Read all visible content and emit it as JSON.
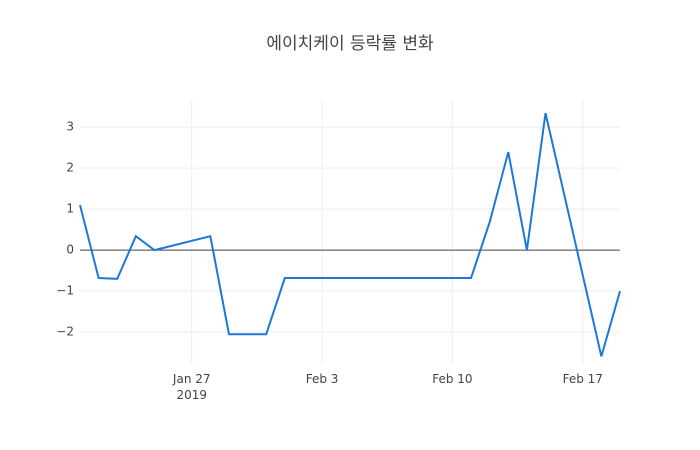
{
  "chart_data": {
    "type": "line",
    "title": "에이치케이 등락률 변화",
    "x": [
      "2019-01-21",
      "2019-01-22",
      "2019-01-23",
      "2019-01-24",
      "2019-01-25",
      "2019-01-28",
      "2019-01-29",
      "2019-01-30",
      "2019-01-31",
      "2019-02-01",
      "2019-02-07",
      "2019-02-08",
      "2019-02-11",
      "2019-02-12",
      "2019-02-13",
      "2019-02-14",
      "2019-02-15",
      "2019-02-18",
      "2019-02-19"
    ],
    "series": [
      {
        "name": "등락률",
        "color": "#1f77d8",
        "values": [
          1.1,
          -0.68,
          -0.7,
          0.34,
          0,
          0.34,
          -2.05,
          -2.05,
          -2.05,
          -0.68,
          -0.68,
          -0.68,
          -0.68,
          0.68,
          2.39,
          0,
          3.34,
          -2.59,
          -1.0
        ]
      }
    ],
    "xlim": [
      "2019-01-21",
      "2019-02-19"
    ],
    "xticks": [
      {
        "value": "2019-01-27",
        "label": "Jan 27\n2019"
      },
      {
        "value": "2019-02-03",
        "label": "Feb 3"
      },
      {
        "value": "2019-02-10",
        "label": "Feb 10"
      },
      {
        "value": "2019-02-17",
        "label": "Feb 17"
      }
    ],
    "ylim": [
      -2.8,
      3.66
    ],
    "yticks": [
      {
        "value": -2,
        "label": "−2"
      },
      {
        "value": -1,
        "label": "−1"
      },
      0,
      1,
      2,
      3
    ],
    "grid": true,
    "zeroline": true
  }
}
